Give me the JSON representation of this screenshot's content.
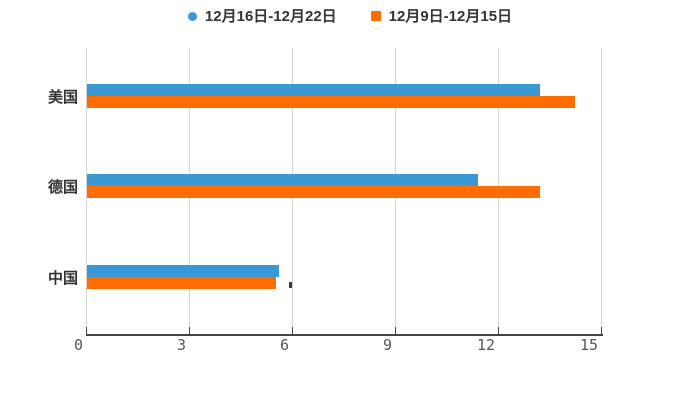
{
  "chart_data": {
    "type": "bar",
    "orientation": "horizontal",
    "title": "",
    "xlabel": "",
    "ylabel": "",
    "categories": [
      "美国",
      "德国",
      "中国"
    ],
    "series": [
      {
        "name": "12月16日-12月22日",
        "marker": "circle",
        "color": "#3a99d3",
        "values": [
          13.2,
          11.4,
          5.6
        ]
      },
      {
        "name": "12月9日-12月15日",
        "marker": "square",
        "color": "#ff6c00",
        "values": [
          14.2,
          13.2,
          5.5
        ]
      }
    ],
    "x_ticks": [
      "0",
      "3",
      "6",
      "9",
      "12",
      "15"
    ],
    "xlim": [
      0,
      15
    ],
    "grid": true,
    "legend_position": "top-center",
    "colors": {
      "axis": "#444444",
      "gridline": "#d4d4d4",
      "tick_label": "#555555",
      "category_label": "#333333",
      "legend_text": "#333333",
      "background": "#ffffff"
    }
  }
}
